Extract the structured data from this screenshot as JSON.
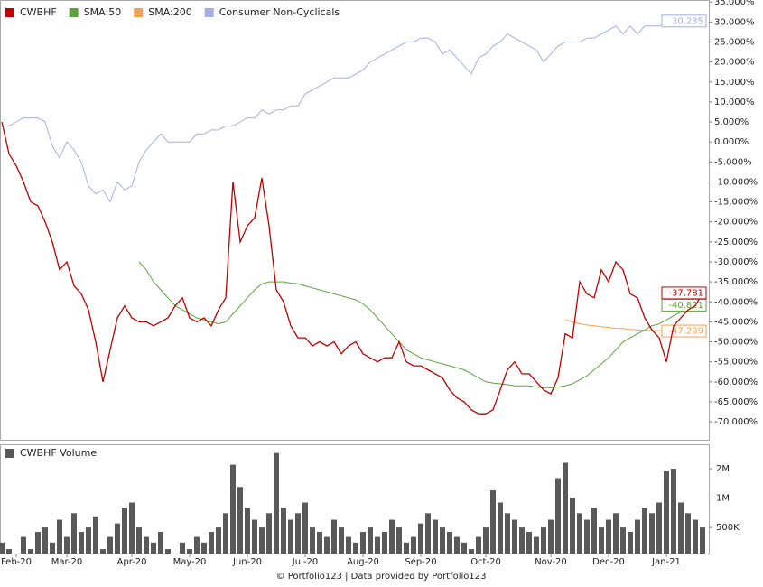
{
  "chart_data": {
    "type": "line",
    "legend": "top-left",
    "categories": [
      null,
      null,
      "Feb-20",
      null,
      null,
      null,
      null,
      null,
      null,
      "Mar-20",
      null,
      null,
      null,
      null,
      null,
      null,
      null,
      null,
      "Apr-20",
      null,
      null,
      null,
      null,
      null,
      null,
      null,
      "May-20",
      null,
      null,
      null,
      null,
      null,
      null,
      null,
      "Jun-20",
      null,
      null,
      null,
      null,
      null,
      null,
      null,
      "Jul-20",
      null,
      null,
      null,
      null,
      null,
      null,
      null,
      "Aug-20",
      null,
      null,
      null,
      null,
      null,
      null,
      null,
      "Sep-20",
      null,
      null,
      null,
      null,
      null,
      null,
      null,
      null,
      "Oct-20",
      null,
      null,
      null,
      null,
      null,
      null,
      null,
      null,
      "Nov-20",
      null,
      null,
      null,
      null,
      null,
      null,
      null,
      "Dec-20",
      null,
      null,
      null,
      null,
      null,
      null,
      null,
      "Jan-21",
      null,
      null,
      null,
      null,
      null
    ],
    "series": [
      {
        "name": "CWBHF",
        "color": "#c00000",
        "values": [
          5,
          -3,
          -6,
          -10,
          -15,
          -16,
          -20,
          -25,
          -32,
          -30,
          -36,
          -38,
          -42,
          -50,
          -60,
          -52,
          -44,
          -41,
          -44,
          -45,
          -45,
          -46,
          -45,
          -44,
          -41,
          -39,
          -44,
          -45,
          -44,
          -46,
          -42,
          -39,
          -10,
          -25,
          -21,
          -19,
          -9,
          -21,
          -37,
          -40,
          -46,
          -49,
          -49,
          -51,
          -50,
          -51,
          -50,
          -53,
          -51,
          -50,
          -53,
          -54,
          -55,
          -54,
          -54,
          -50,
          -55,
          -56,
          -56,
          -57,
          -58,
          -59,
          -62,
          -64,
          -65,
          -67,
          -68,
          -68,
          -67,
          -62,
          -57,
          -55,
          -58,
          -58,
          -60,
          -62,
          -63,
          -59,
          -48,
          -49,
          -35,
          -38,
          -39,
          -32,
          -35,
          -30,
          -32,
          -38,
          -39,
          -44,
          -47,
          -49,
          -55,
          -46,
          -44,
          -42,
          -41,
          -37.781
        ]
      },
      {
        "name": "SMA:50",
        "color": "#5aa33c",
        "values": [
          null,
          null,
          null,
          null,
          null,
          null,
          null,
          null,
          null,
          null,
          null,
          null,
          null,
          null,
          null,
          null,
          null,
          null,
          null,
          -30,
          -32,
          -35,
          -37,
          -39,
          -41,
          -42,
          -43,
          -44,
          -44.5,
          -45,
          -45.5,
          -45,
          -43,
          -41,
          -39,
          -37,
          -35.5,
          -35,
          -35,
          -35,
          -35.3,
          -35.5,
          -36,
          -36.5,
          -37,
          -37.5,
          -38,
          -38.5,
          -39,
          -39.5,
          -40.5,
          -42,
          -44,
          -46,
          -48,
          -50,
          -52,
          -53,
          -54,
          -54.5,
          -55,
          -55.5,
          -56,
          -56.5,
          -57,
          -58,
          -59,
          -60,
          -60.3,
          -60.5,
          -60.7,
          -61,
          -61,
          -61,
          -61.3,
          -61.5,
          -61.5,
          -61.3,
          -61,
          -60.5,
          -59.5,
          -58.5,
          -57,
          -55.5,
          -54,
          -52,
          -50,
          -49,
          -48,
          -47,
          -46,
          -45.5,
          -44.5,
          -43.5,
          -42.5,
          -41.5,
          -41,
          -40.821
        ]
      },
      {
        "name": "SMA:200",
        "color": "#f5a050",
        "values": [
          null,
          null,
          null,
          null,
          null,
          null,
          null,
          null,
          null,
          null,
          null,
          null,
          null,
          null,
          null,
          null,
          null,
          null,
          null,
          null,
          null,
          null,
          null,
          null,
          null,
          null,
          null,
          null,
          null,
          null,
          null,
          null,
          null,
          null,
          null,
          null,
          null,
          null,
          null,
          null,
          null,
          null,
          null,
          null,
          null,
          null,
          null,
          null,
          null,
          null,
          null,
          null,
          null,
          null,
          null,
          null,
          null,
          null,
          null,
          null,
          null,
          null,
          null,
          null,
          null,
          null,
          null,
          null,
          null,
          null,
          null,
          null,
          null,
          null,
          null,
          null,
          null,
          null,
          -44.5,
          -45,
          -45.5,
          -45.8,
          -46,
          -46.2,
          -46.4,
          -46.6,
          -46.7,
          -46.9,
          -47,
          -47.1,
          -47.2,
          -47.2,
          -47.2,
          -47.3,
          -47.3,
          -47.3,
          -47.3,
          -47.299
        ]
      },
      {
        "name": "Consumer Non-Cyclicals",
        "color": "#a4aee6",
        "values": [
          4,
          4,
          5,
          6,
          6,
          6,
          5,
          -1,
          -4,
          0,
          -2,
          -5,
          -11,
          -13,
          -12,
          -15,
          -10,
          -12,
          -11,
          -5,
          -2,
          0,
          2,
          0,
          0,
          0,
          0,
          2,
          2,
          3,
          3,
          4,
          4,
          5,
          6,
          6,
          8,
          7,
          8,
          8,
          9,
          9,
          12,
          13,
          14,
          15,
          16,
          16,
          16,
          17,
          18,
          20,
          21,
          22,
          23,
          24,
          25,
          25,
          26,
          26,
          25,
          22,
          23,
          21,
          19,
          17,
          21,
          22,
          24,
          25,
          27,
          26,
          25,
          24,
          23,
          20,
          22,
          24,
          25,
          25,
          25,
          26,
          26,
          27,
          28,
          29,
          27,
          29,
          27,
          29,
          29,
          29,
          30,
          29,
          30,
          30,
          30,
          30.235
        ]
      }
    ],
    "ylim": [
      -74.5,
      35.5
    ],
    "yticks": [
      {
        "value": 35,
        "label": "35.000%"
      },
      {
        "value": 30,
        "label": "30.000%"
      },
      {
        "value": 25,
        "label": "25.000%"
      },
      {
        "value": 20,
        "label": "20.000%"
      },
      {
        "value": 15,
        "label": "15.000%"
      },
      {
        "value": 10,
        "label": "10.000%"
      },
      {
        "value": 5,
        "label": "5.000%"
      },
      {
        "value": 0,
        "label": "0.000%"
      },
      {
        "value": -5,
        "label": "-5.000%"
      },
      {
        "value": -10,
        "label": "-10.000%"
      },
      {
        "value": -15,
        "label": "-15.000%"
      },
      {
        "value": -20,
        "label": "-20.000%"
      },
      {
        "value": -25,
        "label": "-25.000%"
      },
      {
        "value": -30,
        "label": "-30.000%"
      },
      {
        "value": -35,
        "label": "-35.000%"
      },
      {
        "value": -40,
        "label": "-40.000%"
      },
      {
        "value": -45,
        "label": "-45.000%"
      },
      {
        "value": -50,
        "label": "-50.000%"
      },
      {
        "value": -55,
        "label": "-55.000%"
      },
      {
        "value": -60,
        "label": "-60.000%"
      },
      {
        "value": -65,
        "label": "-65.000%"
      },
      {
        "value": -70,
        "label": "-70.000%"
      }
    ],
    "volume": {
      "type": "bar",
      "name": "CWBHF Volume",
      "color": "#595959",
      "yscale": "log",
      "ylim": [
        270000,
        3560000
      ],
      "yticks": [
        {
          "value": 500000,
          "label": "500K"
        },
        {
          "value": 1000000,
          "label": "1M"
        },
        {
          "value": 2000000,
          "label": "2M"
        }
      ],
      "values": [
        350000,
        300000,
        250000,
        400000,
        300000,
        450000,
        500000,
        350000,
        600000,
        400000,
        700000,
        450000,
        500000,
        650000,
        300000,
        400000,
        550000,
        800000,
        900000,
        500000,
        400000,
        350000,
        450000,
        300000,
        250000,
        350000,
        300000,
        400000,
        350000,
        450000,
        500000,
        700000,
        2200000,
        1300000,
        800000,
        600000,
        500000,
        700000,
        2900000,
        800000,
        600000,
        700000,
        900000,
        500000,
        450000,
        400000,
        600000,
        500000,
        400000,
        350000,
        450000,
        500000,
        400000,
        450000,
        600000,
        500000,
        350000,
        400000,
        550000,
        700000,
        600000,
        500000,
        450000,
        400000,
        350000,
        300000,
        400000,
        500000,
        1200000,
        900000,
        700000,
        600000,
        500000,
        450000,
        400000,
        500000,
        600000,
        1600000,
        2300000,
        1000000,
        700000,
        600000,
        800000,
        500000,
        600000,
        700000,
        500000,
        450000,
        600000,
        800000,
        700000,
        900000,
        1900000,
        2000000,
        900000,
        700000,
        600000,
        500000
      ]
    }
  },
  "footer": "© Portfolio123 | Data provided by Portfolio123"
}
